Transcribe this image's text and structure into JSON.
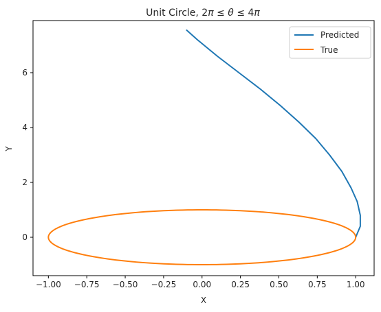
{
  "chart_data": {
    "type": "line",
    "title": {
      "prefix": "Unit Circle, 2",
      "pi": "π",
      "le": " ≤ ",
      "theta": "θ",
      "mid": " ≤ 4",
      "pi2": "π"
    },
    "xlabel": "X",
    "ylabel": "Y",
    "xlim": [
      -1.1,
      1.12
    ],
    "ylim": [
      -1.4,
      7.9
    ],
    "xticks": [
      -1.0,
      -0.75,
      -0.5,
      -0.25,
      0.0,
      0.25,
      0.5,
      0.75,
      1.0
    ],
    "xtick_labels": [
      "−1.00",
      "−0.75",
      "−0.50",
      "−0.25",
      "0.00",
      "0.25",
      "0.50",
      "0.75",
      "1.00"
    ],
    "yticks": [
      0,
      2,
      4,
      6
    ],
    "ytick_labels": [
      "0",
      "2",
      "4",
      "6"
    ],
    "grid": false,
    "legend_position": "top-right",
    "series": [
      {
        "name": "Predicted",
        "color": "#1f77b4",
        "x": [
          1.0,
          1.03,
          1.03,
          1.01,
          0.97,
          0.91,
          0.83,
          0.74,
          0.63,
          0.51,
          0.38,
          0.24,
          0.1,
          -0.03,
          -0.1
        ],
        "y": [
          0.0,
          0.4,
          0.8,
          1.3,
          1.8,
          2.4,
          3.0,
          3.6,
          4.2,
          4.8,
          5.4,
          6.0,
          6.6,
          7.2,
          7.55
        ]
      },
      {
        "name": "True",
        "color": "#ff7f0e",
        "shape": "ellipse",
        "center": [
          0.0,
          0.0
        ],
        "radius_x": 1.0,
        "radius_y": 1.0
      }
    ]
  }
}
